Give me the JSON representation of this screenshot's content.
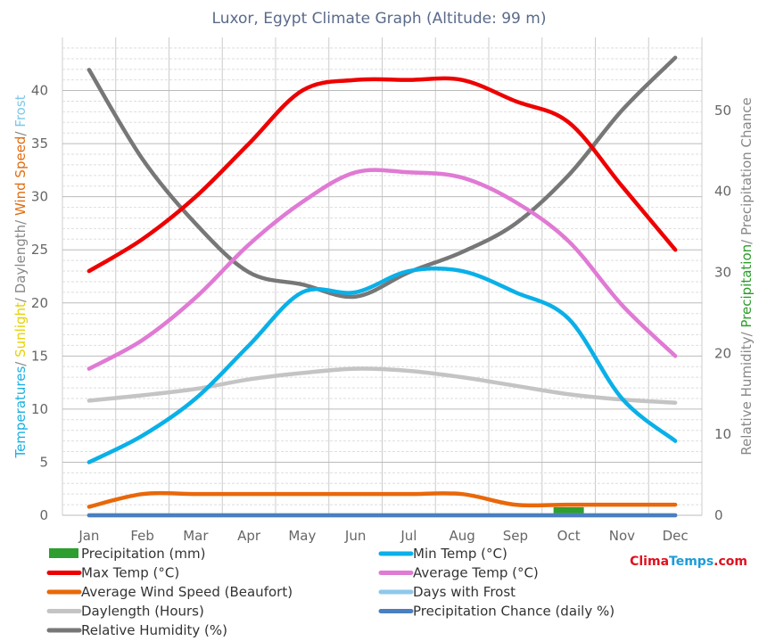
{
  "chart_data": {
    "type": "line",
    "title": "Luxor, Egypt Climate Graph (Altitude: 99 m)",
    "categories": [
      "Jan",
      "Feb",
      "Mar",
      "Apr",
      "May",
      "Jun",
      "Jul",
      "Aug",
      "Sep",
      "Oct",
      "Nov",
      "Dec"
    ],
    "left_axis": {
      "label_parts": [
        {
          "text": "Temperatures",
          "color": "#1ab0e0"
        },
        {
          "text": "/ ",
          "color": "#888888"
        },
        {
          "text": "Sunlight",
          "color": "#e6d200"
        },
        {
          "text": "/ Daylength/ ",
          "color": "#888888"
        },
        {
          "text": "Wind Speed",
          "color": "#e06c10"
        },
        {
          "text": "/ ",
          "color": "#888888"
        },
        {
          "text": "Frost",
          "color": "#7ec8e8"
        }
      ],
      "ylim": [
        0,
        45
      ],
      "ticks": [
        "0",
        "5",
        "10",
        "15",
        "20",
        "25",
        "30",
        "35",
        "40"
      ]
    },
    "right_axis": {
      "label_parts": [
        {
          "text": "Relative Humidity/ ",
          "color": "#888888"
        },
        {
          "text": "Precipitation",
          "color": "#2a9d2a"
        },
        {
          "text": "/ Precipitation Chance",
          "color": "#888888"
        }
      ],
      "ylim": [
        0,
        59
      ],
      "ticks": [
        "0",
        "10",
        "20",
        "30",
        "40",
        "50"
      ]
    },
    "grid": true,
    "legend_position": "bottom",
    "series": [
      {
        "name": "Precipitation (mm)",
        "type": "bar",
        "axis": "right",
        "color": "#2e9e2e",
        "values": [
          0,
          0,
          0,
          0,
          0,
          0,
          0,
          0,
          0,
          1,
          0,
          0
        ]
      },
      {
        "name": "Min Temp (°C)",
        "axis": "left",
        "color": "#0ab0e8",
        "values": [
          5,
          7.5,
          11,
          16,
          21,
          21,
          23,
          23,
          21,
          18.5,
          11,
          7
        ]
      },
      {
        "name": "Max Temp (°C)",
        "axis": "left",
        "color": "#ee0000",
        "values": [
          23,
          26,
          30,
          35,
          40,
          41,
          41,
          41,
          39,
          37,
          31,
          25
        ]
      },
      {
        "name": "Average Temp (°C)",
        "axis": "left",
        "color": "#e07ad4",
        "values": [
          13.8,
          16.5,
          20.5,
          25.5,
          29.5,
          32.3,
          32.3,
          31.8,
          29.5,
          25.8,
          19.8,
          15
        ]
      },
      {
        "name": "Average Wind Speed (Beaufort)",
        "axis": "left",
        "color": "#e8680a",
        "values": [
          0.8,
          2,
          2,
          2,
          2,
          2,
          2,
          2,
          1,
          1,
          1,
          1
        ]
      },
      {
        "name": "Days with Frost",
        "axis": "left",
        "color": "#8ec8ec",
        "values": [
          0,
          0,
          0,
          0,
          0,
          0,
          0,
          0,
          0,
          0,
          0,
          0
        ]
      },
      {
        "name": "Daylength (Hours)",
        "axis": "left",
        "color": "#c4c4c4",
        "values": [
          10.8,
          11.3,
          11.9,
          12.8,
          13.4,
          13.8,
          13.6,
          13,
          12.2,
          11.4,
          10.9,
          10.6
        ]
      },
      {
        "name": "Precipitation Chance (daily %)",
        "axis": "right",
        "color": "#4a7fc0",
        "values": [
          0,
          0,
          0,
          0,
          0,
          0,
          0,
          0,
          0,
          0,
          0,
          0
        ]
      },
      {
        "name": "Relative Humidity (%)",
        "axis": "right",
        "color": "#777777",
        "values": [
          55,
          44,
          36,
          30,
          28.5,
          27,
          30,
          32.5,
          36,
          42,
          50,
          56.5
        ]
      }
    ],
    "legend": [
      {
        "label": "Precipitation (mm)",
        "color": "#2e9e2e",
        "kind": "box"
      },
      {
        "label": "Min Temp (°C)",
        "color": "#0ab0e8",
        "kind": "line"
      },
      {
        "label": "Max Temp (°C)",
        "color": "#ee0000",
        "kind": "line"
      },
      {
        "label": "Average Temp (°C)",
        "color": "#e07ad4",
        "kind": "line"
      },
      {
        "label": "Average Wind Speed (Beaufort)",
        "color": "#e8680a",
        "kind": "line"
      },
      {
        "label": "Days with Frost",
        "color": "#8ec8ec",
        "kind": "line"
      },
      {
        "label": "Daylength (Hours)",
        "color": "#c4c4c4",
        "kind": "line"
      },
      {
        "label": "Precipitation Chance (daily %)",
        "color": "#4a7fc0",
        "kind": "line"
      },
      {
        "label": "Relative Humidity (%)",
        "color": "#777777",
        "kind": "line"
      }
    ]
  },
  "brand": {
    "part1": "Clima",
    "part2": "Temps",
    "part3": ".com"
  }
}
